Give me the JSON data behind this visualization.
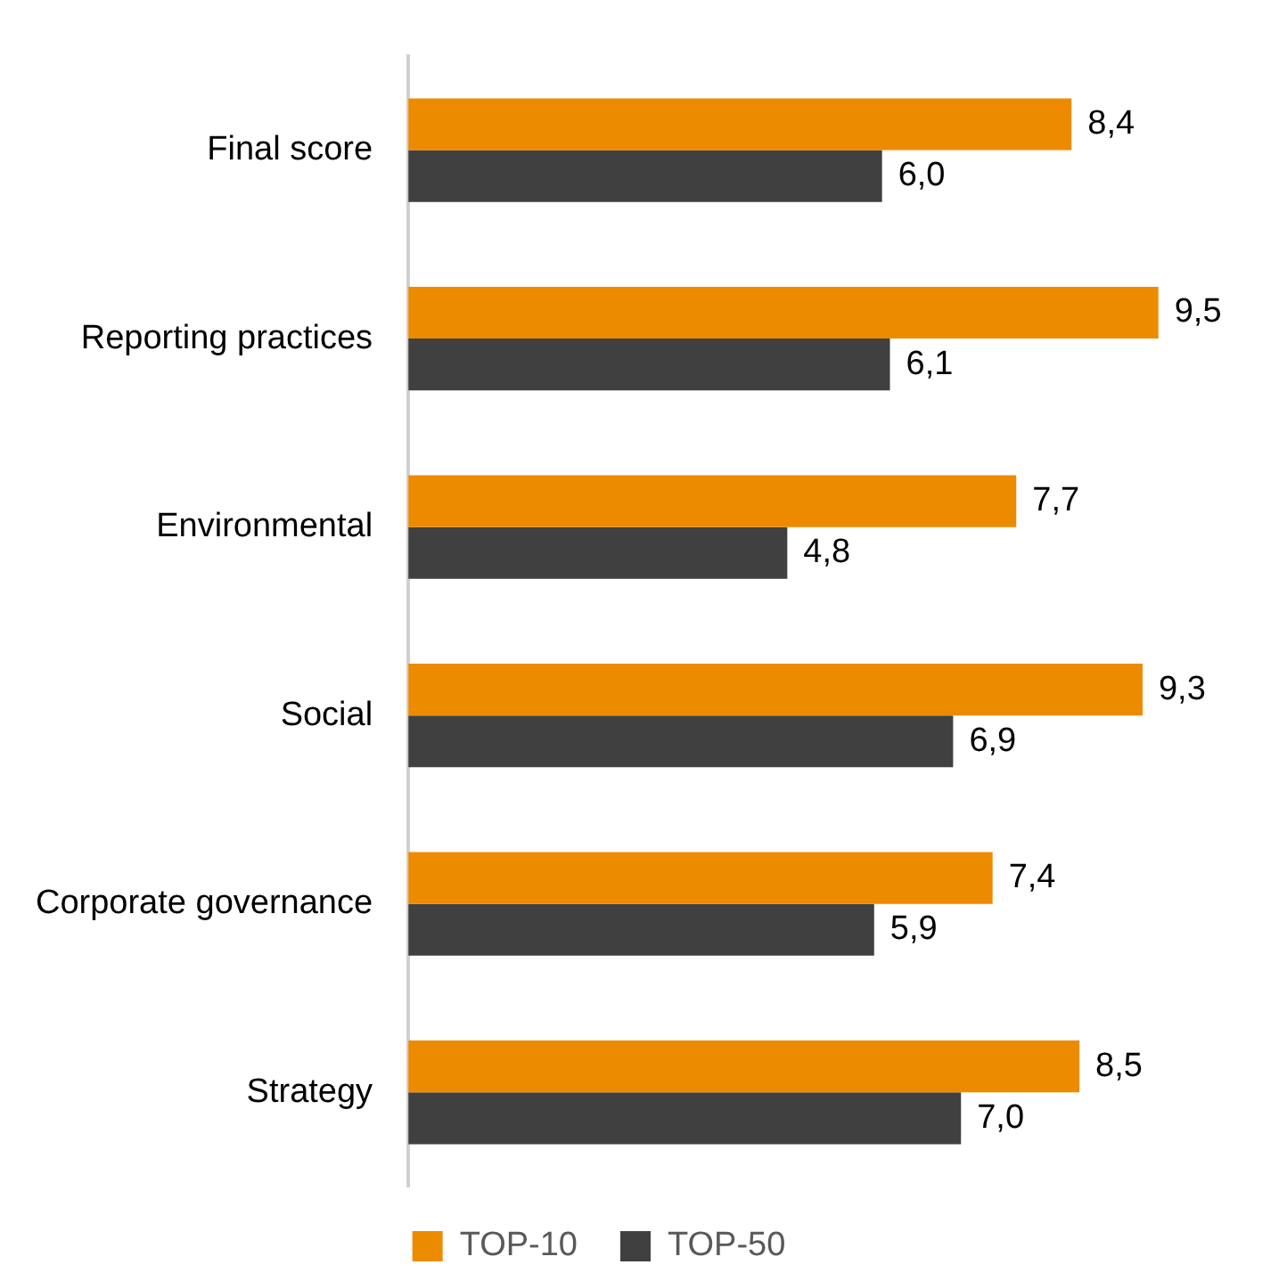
{
  "chart_data": {
    "type": "bar",
    "orientation": "horizontal",
    "categories": [
      "Final score",
      "Reporting practices",
      "Environmental",
      "Social",
      "Corporate governance",
      "Strategy"
    ],
    "series": [
      {
        "name": "TOP-10",
        "color": "#ed8b00",
        "values": [
          8.4,
          9.5,
          7.7,
          9.3,
          7.4,
          8.5
        ],
        "value_labels": [
          "8,4",
          "9,5",
          "7,7",
          "9,3",
          "7,4",
          "8,5"
        ]
      },
      {
        "name": "TOP-50",
        "color": "#404040",
        "values": [
          6.0,
          6.1,
          4.8,
          6.9,
          5.9,
          7.0
        ],
        "value_labels": [
          "6,0",
          "6,1",
          "4,8",
          "6,9",
          "5,9",
          "7,0"
        ]
      }
    ],
    "grid": false,
    "legend": "bottom",
    "tick_labels": "y"
  }
}
